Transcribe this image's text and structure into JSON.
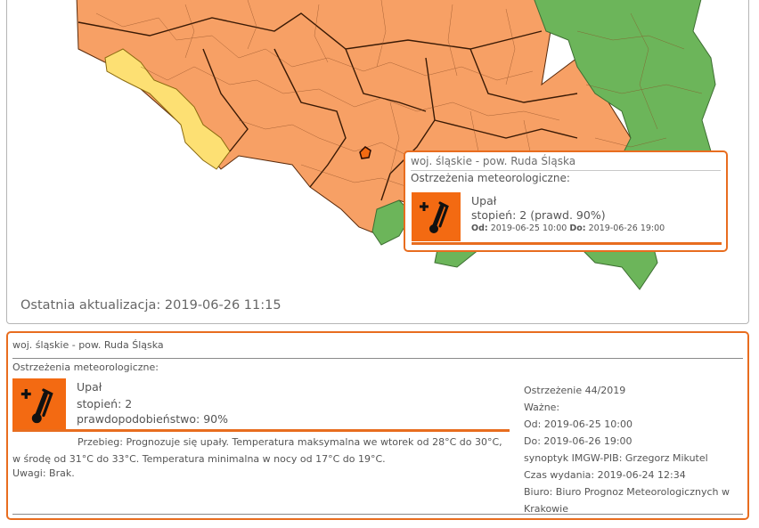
{
  "map": {
    "last_update": "Ostatnia aktualizacja: 2019-06-26 11:15",
    "colors": {
      "level2": "#f7a065",
      "level1": "#fde073",
      "none": "#6cb55a",
      "border": "#5a2a0a"
    }
  },
  "popup": {
    "region": "woj. śląskie - pow. Ruda Śląska",
    "subtitle": "Ostrzeżenia meteorologiczne:",
    "icon": "thermometer-plus-icon",
    "warning_name": "Upał",
    "level_text": "stopień: 2 (prawd. 90%)",
    "from_label": "Od:",
    "from": "2019-06-25 10:00",
    "to_label": "Do:",
    "to": "2019-06-26 19:00"
  },
  "warning": {
    "region": "woj. śląskie - pow. Ruda Śląska",
    "subtitle": "Ostrzeżenia meteorologiczne:",
    "icon": "thermometer-plus-icon",
    "name": "Upał",
    "level": "stopień: 2",
    "probability": "prawdopodobieństwo: 90%",
    "description": "Przebieg: Prognozuje się upały. Temperatura maksymalna we wtorek od 28°C do 30°C, w środę od 31°C do 33°C. Temperatura minimalna w nocy od 17°C do 19°C.",
    "remarks": "Uwagi: Brak.",
    "number": "Ostrzeżenie 44/2019",
    "valid": "Ważne:",
    "from": "Od: 2019-06-25 10:00",
    "to": "Do: 2019-06-26 19:00",
    "forecaster": "synoptyk IMGW-PIB: Grzegorz Mikutel",
    "issued": "Czas wydania: 2019-06-24 12:34",
    "office": "Biuro: Biuro Prognoz Meteorologicznych w Krakowie"
  }
}
